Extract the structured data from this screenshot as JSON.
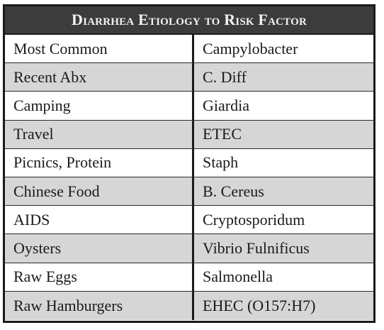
{
  "table": {
    "title": "Diarrhea Etiology to Risk Factor",
    "rows": [
      {
        "risk_factor": "Most Common",
        "etiology": "Campylobacter"
      },
      {
        "risk_factor": "Recent Abx",
        "etiology": "C. Diff"
      },
      {
        "risk_factor": "Camping",
        "etiology": "Giardia"
      },
      {
        "risk_factor": "Travel",
        "etiology": "ETEC"
      },
      {
        "risk_factor": "Picnics, Protein",
        "etiology": "Staph"
      },
      {
        "risk_factor": "Chinese Food",
        "etiology": "B. Cereus"
      },
      {
        "risk_factor": "AIDS",
        "etiology": "Cryptosporidum"
      },
      {
        "risk_factor": "Oysters",
        "etiology": "Vibrio Fulnificus"
      },
      {
        "risk_factor": "Raw Eggs",
        "etiology": "Salmonella"
      },
      {
        "risk_factor": "Raw Hamburgers",
        "etiology": "EHEC (O157:H7)"
      }
    ],
    "colors": {
      "header_bg": "#3c3c3c",
      "header_text": "#f2f2f2",
      "shaded_row": "#d6d6d6",
      "border": "#1a1a1a"
    }
  }
}
